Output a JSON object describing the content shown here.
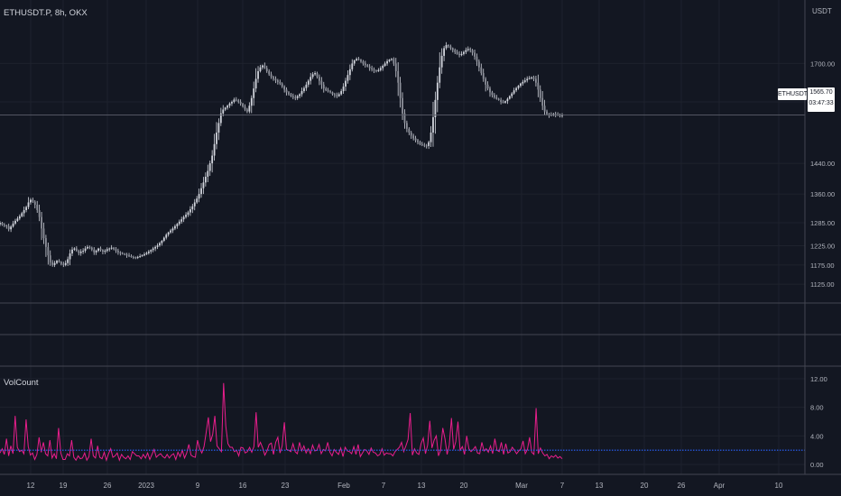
{
  "header": {
    "symbol_line": "ETHUSDT.P, 8h, OKX",
    "currency": "USDT"
  },
  "price_axis": {
    "labels": [
      "1700.00",
      "1600.00",
      "1440.00",
      "1360.00",
      "1285.00",
      "1225.00",
      "1175.00",
      "1125.00"
    ],
    "ticks": [
      1700,
      1600,
      1440,
      1360,
      1285,
      1225,
      1175,
      1125
    ]
  },
  "last_price": {
    "symbol_tag": "ETHUSDT.P",
    "value": "1565.70",
    "countdown": "03:47:33",
    "level": 1565.7
  },
  "time_axis": {
    "labels": [
      "12",
      "19",
      "26",
      "2023",
      "9",
      "16",
      "23",
      "Feb",
      "7",
      "13",
      "20",
      "Mar",
      "7",
      "13",
      "20",
      "26",
      "Apr",
      "10"
    ]
  },
  "indicator": {
    "name": "VolCount",
    "labels": [
      "12.00",
      "8.00",
      "4.00",
      "0.00"
    ],
    "ticks": [
      12,
      8,
      4,
      0
    ],
    "threshold": 2.0
  },
  "colors": {
    "background": "#131722",
    "candle": "#d1d4dc",
    "volcount_line": "#e91e8c",
    "threshold_line": "#2962ff",
    "grid": "#1e222d"
  },
  "chart_data": {
    "type": "candlestick",
    "title": "ETHUSDT.P, 8h, OKX",
    "interval": "8h",
    "price_range": [
      1090,
      1795
    ],
    "close_series": [
      1285,
      1280,
      1278,
      1276,
      1268,
      1275,
      1283,
      1290,
      1296,
      1302,
      1310,
      1318,
      1326,
      1338,
      1345,
      1340,
      1332,
      1318,
      1300,
      1270,
      1245,
      1222,
      1200,
      1182,
      1175,
      1180,
      1186,
      1183,
      1178,
      1175,
      1180,
      1190,
      1205,
      1215,
      1218,
      1212,
      1206,
      1210,
      1212,
      1218,
      1222,
      1220,
      1215,
      1208,
      1212,
      1218,
      1214,
      1210,
      1212,
      1216,
      1218,
      1220,
      1216,
      1212,
      1208,
      1206,
      1204,
      1202,
      1200,
      1198,
      1196,
      1195,
      1194,
      1196,
      1198,
      1200,
      1203,
      1206,
      1210,
      1214,
      1218,
      1222,
      1226,
      1232,
      1238,
      1246,
      1254,
      1260,
      1265,
      1270,
      1276,
      1282,
      1288,
      1294,
      1300,
      1306,
      1312,
      1320,
      1328,
      1338,
      1348,
      1360,
      1375,
      1390,
      1405,
      1420,
      1440,
      1460,
      1490,
      1520,
      1545,
      1570,
      1580,
      1585,
      1590,
      1596,
      1600,
      1606,
      1604,
      1600,
      1595,
      1588,
      1580,
      1575,
      1590,
      1610,
      1635,
      1660,
      1680,
      1690,
      1695,
      1688,
      1680,
      1672,
      1665,
      1660,
      1656,
      1652,
      1648,
      1640,
      1632,
      1625,
      1620,
      1615,
      1612,
      1610,
      1615,
      1620,
      1628,
      1636,
      1645,
      1655,
      1665,
      1672,
      1675,
      1665,
      1655,
      1645,
      1635,
      1630,
      1628,
      1625,
      1620,
      1618,
      1615,
      1620,
      1628,
      1640,
      1655,
      1670,
      1685,
      1700,
      1708,
      1712,
      1710,
      1705,
      1700,
      1696,
      1692,
      1688,
      1685,
      1682,
      1680,
      1683,
      1688,
      1694,
      1700,
      1706,
      1710,
      1712,
      1700,
      1680,
      1650,
      1610,
      1570,
      1545,
      1530,
      1520,
      1512,
      1505,
      1500,
      1495,
      1490,
      1488,
      1486,
      1485,
      1495,
      1520,
      1560,
      1605,
      1650,
      1690,
      1720,
      1740,
      1748,
      1745,
      1740,
      1735,
      1730,
      1725,
      1722,
      1725,
      1730,
      1735,
      1738,
      1735,
      1728,
      1718,
      1705,
      1690,
      1675,
      1660,
      1645,
      1635,
      1625,
      1618,
      1612,
      1608,
      1605,
      1600,
      1598,
      1602,
      1608,
      1615,
      1622,
      1630,
      1636,
      1642,
      1648,
      1652,
      1656,
      1660,
      1662,
      1664,
      1660,
      1650,
      1632,
      1610,
      1590,
      1575,
      1568,
      1565,
      1566,
      1568,
      1567,
      1566,
      1565,
      1565.7
    ],
    "volcount_values": [
      1.6,
      2.2,
      1.4,
      3.6,
      1.2,
      2.6,
      1.5,
      6.8,
      2.4,
      1.8,
      2.0,
      1.5,
      6.3,
      2.5,
      1.3,
      1.6,
      0.7,
      1.4,
      3.8,
      1.7,
      3.1,
      1.5,
      1.2,
      3.4,
      0.9,
      1.5,
      0.8,
      5.1,
      1.6,
      0.7,
      0.7,
      1.5,
      1.2,
      3.4,
      1.0,
      0.6,
      1.2,
      0.8,
      0.9,
      1.6,
      0.6,
      1.1,
      3.6,
      1.2,
      0.9,
      2.6,
      1.0,
      0.8,
      1.7,
      0.6,
      1.5,
      2.2,
      1.0,
      1.2,
      1.6,
      0.6,
      1.4,
      1.0,
      0.8,
      1.2,
      0.7,
      1.8,
      1.5,
      1.2,
      1.2,
      0.8,
      1.4,
      0.9,
      1.6,
      0.7,
      1.4,
      2.1,
      1.0,
      1.3,
      1.5,
      1.1,
      0.9,
      1.4,
      0.9,
      1.3,
      1.5,
      0.7,
      1.7,
      1.1,
      2.0,
      0.9,
      1.6,
      2.8,
      1.3,
      1.1,
      1.0,
      3.4,
      2.2,
      1.6,
      2.5,
      4.5,
      6.6,
      3.2,
      4.2,
      6.8,
      2.6,
      2.2,
      1.8,
      11.4,
      5.4,
      2.9,
      2.4,
      2.4,
      1.8,
      2.0,
      1.2,
      2.4,
      2.3,
      1.6,
      1.8,
      2.4,
      1.7,
      2.5,
      7.3,
      2.4,
      3.1,
      2.3,
      1.3,
      1.9,
      2.8,
      3.0,
      1.4,
      3.1,
      3.8,
      1.6,
      2.6,
      5.9,
      2.1,
      2.0,
      1.8,
      2.9,
      1.8,
      1.5,
      3.1,
      1.9,
      2.6,
      1.6,
      2.2,
      1.5,
      2.7,
      1.9,
      2.0,
      2.8,
      1.5,
      2.1,
      1.9,
      3.1,
      1.7,
      1.2,
      2.1,
      1.7,
      1.4,
      2.3,
      1.1,
      2.4,
      1.9,
      1.8,
      1.5,
      2.5,
      1.4,
      2.8,
      1.1,
      1.6,
      2.1,
      1.9,
      1.4,
      2.3,
      1.7,
      1.6,
      1.2,
      1.4,
      2.2,
      1.3,
      1.6,
      1.5,
      1.5,
      1.2,
      1.8,
      2.1,
      2.4,
      3.1,
      1.8,
      2.6,
      3.5,
      7.2,
      1.3,
      2.2,
      1.6,
      1.4,
      2.9,
      3.7,
      1.5,
      2.7,
      6.1,
      2.3,
      3.4,
      4.0,
      1.2,
      2.0,
      5.1,
      3.6,
      1.4,
      2.7,
      6.5,
      2.1,
      3.2,
      6.0,
      2.0,
      2.5,
      1.4,
      4.0,
      2.2,
      1.8,
      2.1,
      2.5,
      1.6,
      1.5,
      3.1,
      1.9,
      2.2,
      1.7,
      2.6,
      1.5,
      3.6,
      2.0,
      1.8,
      3.1,
      1.4,
      2.9,
      1.6,
      1.8,
      2.4,
      2.0,
      1.5,
      1.9,
      2.2,
      3.3,
      1.5,
      2.1,
      3.8,
      1.7,
      1.4,
      7.9,
      1.5,
      2.3,
      1.6,
      1.2,
      1.4,
      0.8,
      1.2,
      1.0,
      1.3,
      0.9,
      1.1,
      0.8
    ],
    "threshold": 2.0
  }
}
